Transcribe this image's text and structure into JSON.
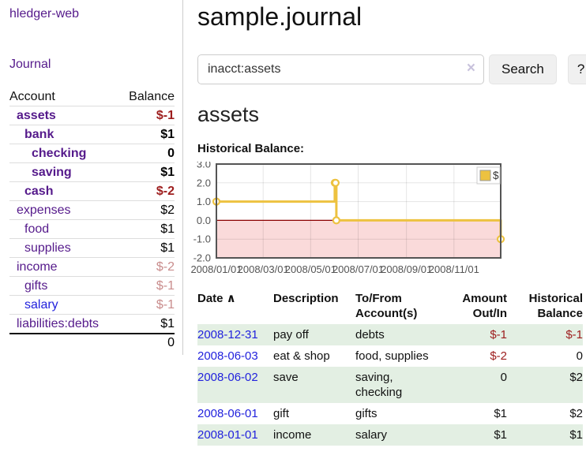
{
  "app": {
    "brand": "hledger-web"
  },
  "sidebar": {
    "journal_label": "Journal",
    "accounts_table": {
      "col_account": "Account",
      "col_balance": "Balance",
      "rows": [
        {
          "name": "assets",
          "depth": 1,
          "balance": "$-1",
          "bold": true,
          "balance_class": "strongneg",
          "link_class": ""
        },
        {
          "name": "bank",
          "depth": 2,
          "balance": "$1",
          "bold": true,
          "balance_class": "",
          "link_class": ""
        },
        {
          "name": "checking",
          "depth": 3,
          "balance": "0",
          "bold": true,
          "balance_class": "",
          "link_class": ""
        },
        {
          "name": "saving",
          "depth": 3,
          "balance": "$1",
          "bold": true,
          "balance_class": "",
          "link_class": ""
        },
        {
          "name": "cash",
          "depth": 2,
          "balance": "$-2",
          "bold": true,
          "balance_class": "strongneg",
          "link_class": ""
        },
        {
          "name": "expenses",
          "depth": 1,
          "balance": "$2",
          "bold": false,
          "balance_class": "",
          "link_class": ""
        },
        {
          "name": "food",
          "depth": 2,
          "balance": "$1",
          "bold": false,
          "balance_class": "",
          "link_class": ""
        },
        {
          "name": "supplies",
          "depth": 2,
          "balance": "$1",
          "bold": false,
          "balance_class": "",
          "link_class": ""
        },
        {
          "name": "income",
          "depth": 1,
          "balance": "$-2",
          "bold": false,
          "balance_class": "softneg",
          "link_class": ""
        },
        {
          "name": "gifts",
          "depth": 2,
          "balance": "$-1",
          "bold": false,
          "balance_class": "softneg",
          "link_class": ""
        },
        {
          "name": "salary",
          "depth": 2,
          "balance": "$-1",
          "bold": false,
          "balance_class": "softneg",
          "link_class": "bluelink"
        },
        {
          "name": "liabilities:debts",
          "depth": 1,
          "balance": "$1",
          "bold": false,
          "balance_class": "",
          "link_class": ""
        }
      ],
      "total": "0"
    }
  },
  "header": {
    "title": "sample.journal"
  },
  "search": {
    "value": "inacct:assets",
    "clear_icon": "×",
    "button": "Search",
    "help_button": "?"
  },
  "account_page": {
    "heading": "assets",
    "chart_label": "Historical Balance:"
  },
  "chart_data": {
    "type": "line",
    "style": "steps",
    "title": "Historical Balance",
    "xlim": [
      "2008-01-01",
      "2008-12-31"
    ],
    "ylim": [
      -2,
      3
    ],
    "y_ticks": [
      "3.0",
      "2.0",
      "1.0",
      "0.0",
      "-1.0",
      "-2.0"
    ],
    "x_ticks": [
      {
        "date": "2008-01-01",
        "label": "2008/01/01"
      },
      {
        "date": "2008-03-01",
        "label": "2008/03/01"
      },
      {
        "date": "2008-05-01",
        "label": "2008/05/01"
      },
      {
        "date": "2008-07-01",
        "label": "2008/07/01"
      },
      {
        "date": "2008-09-01",
        "label": "2008/09/01"
      },
      {
        "date": "2008-11-01",
        "label": "2008/11/01"
      }
    ],
    "series": [
      {
        "name": "$",
        "color": "#edc240",
        "points": [
          {
            "date": "2008-01-01",
            "value": 1
          },
          {
            "date": "2008-06-01",
            "value": 2
          },
          {
            "date": "2008-06-02",
            "value": 2
          },
          {
            "date": "2008-06-03",
            "value": 0
          },
          {
            "date": "2008-12-31",
            "value": -1
          }
        ]
      }
    ],
    "legend": {
      "label": "$",
      "position": "top-right"
    },
    "negative_region_color": "#fadada",
    "zero_line_color": "#8b0000",
    "border_color": "#545454",
    "tick_label_color": "#545454",
    "grid": true
  },
  "register": {
    "columns": [
      {
        "label": "Date",
        "align": "left",
        "sort_icon": "∧"
      },
      {
        "label": "Description",
        "align": "left"
      },
      {
        "label": "To/From\nAccount(s)",
        "align": "left"
      },
      {
        "label": "Amount\nOut/In",
        "align": "right"
      },
      {
        "label": "Historical\nBalance",
        "align": "right"
      }
    ],
    "rows": [
      {
        "date": "2008-12-31",
        "description": "pay off",
        "accounts": "debts",
        "amount": "$-1",
        "amount_neg": true,
        "balance": "$-1",
        "balance_neg": true
      },
      {
        "date": "2008-06-03",
        "description": "eat & shop",
        "accounts": "food, supplies",
        "amount": "$-2",
        "amount_neg": true,
        "balance": "0",
        "balance_neg": false
      },
      {
        "date": "2008-06-02",
        "description": "save",
        "accounts": "saving,\nchecking",
        "amount": "0",
        "amount_neg": false,
        "balance": "$2",
        "balance_neg": false
      },
      {
        "date": "2008-06-01",
        "description": "gift",
        "accounts": "gifts",
        "amount": "$1",
        "amount_neg": false,
        "balance": "$2",
        "balance_neg": false
      },
      {
        "date": "2008-01-01",
        "description": "income",
        "accounts": "salary",
        "amount": "$1",
        "amount_neg": false,
        "balance": "$1",
        "balance_neg": false
      }
    ]
  }
}
